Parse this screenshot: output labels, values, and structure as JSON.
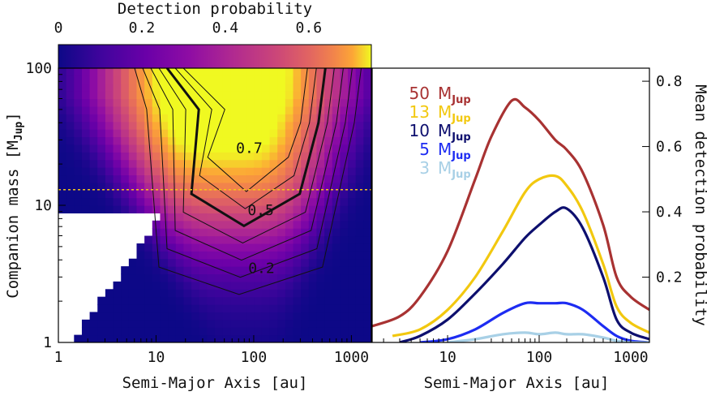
{
  "chart_data": [
    {
      "type": "heatmap",
      "colorbar": {
        "label": "Detection probability",
        "ticks": [
          "0",
          "0.2",
          "0.4",
          "0.6"
        ],
        "range": [
          0,
          0.75
        ],
        "colormap": "plasma"
      },
      "xlabel": "Semi-Major Axis [au]",
      "xticks": [
        "1",
        "10",
        "100",
        "1000"
      ],
      "xscale": "log",
      "xlim": [
        1,
        1600
      ],
      "ylabel_main": "Companion mass [M",
      "ylabel_sub": "Jup",
      "ylabel_end": "]",
      "yticks": [
        "1",
        "10",
        "100"
      ],
      "yscale": "log",
      "ylim": [
        1,
        100
      ],
      "dashed_line_mass": 13,
      "dashed_line_color": "#f5c518",
      "contour_levels": [
        0.1,
        0.2,
        0.3,
        0.4,
        0.5,
        0.6,
        0.7
      ],
      "bold_contour_level": 0.5,
      "contour_labels": [
        "0.7",
        "0.5",
        "0.2"
      ]
    },
    {
      "type": "line",
      "xlabel": "Semi-Major Axis [au]",
      "xticks": [
        "10",
        "100",
        "1000"
      ],
      "xscale": "log",
      "xlim": [
        1.5,
        1600
      ],
      "ylabel": "Mean detection probability",
      "yticks": [
        "0.2",
        "0.4",
        "0.6",
        "0.8"
      ],
      "ylim": [
        0,
        0.84
      ],
      "legend_placement": "top-left",
      "series": [
        {
          "label": "50",
          "unit": "M",
          "unit_sub": "Jup",
          "color": "#a83232",
          "x": [
            1.5,
            3,
            5,
            10,
            20,
            30,
            50,
            70,
            100,
            150,
            200,
            300,
            500,
            700,
            1000,
            1600
          ],
          "y": [
            0.05,
            0.08,
            0.14,
            0.28,
            0.5,
            0.63,
            0.74,
            0.72,
            0.68,
            0.62,
            0.59,
            0.52,
            0.36,
            0.2,
            0.14,
            0.1
          ]
        },
        {
          "label": "13",
          "unit": "M",
          "unit_sub": "Jup",
          "color": "#f2c80f",
          "x": [
            2.5,
            5,
            10,
            20,
            40,
            70,
            100,
            150,
            200,
            300,
            500,
            700,
            1000,
            1600
          ],
          "y": [
            0.02,
            0.04,
            0.1,
            0.2,
            0.34,
            0.46,
            0.5,
            0.51,
            0.48,
            0.4,
            0.24,
            0.11,
            0.06,
            0.03
          ]
        },
        {
          "label": "10",
          "unit": "M",
          "unit_sub": "Jup",
          "color": "#0d0f6e",
          "x": [
            3,
            5,
            10,
            20,
            40,
            70,
            100,
            150,
            200,
            300,
            500,
            700,
            1000,
            1600
          ],
          "y": [
            0.0,
            0.02,
            0.07,
            0.15,
            0.24,
            0.32,
            0.36,
            0.4,
            0.41,
            0.35,
            0.2,
            0.07,
            0.03,
            0.01
          ]
        },
        {
          "label": "5",
          "unit": "M",
          "unit_sub": "Jup",
          "color": "#1d2cf2",
          "x": [
            5,
            10,
            20,
            40,
            70,
            100,
            150,
            200,
            300,
            500,
            700,
            1000,
            1600
          ],
          "y": [
            0.0,
            0.01,
            0.04,
            0.09,
            0.12,
            0.12,
            0.12,
            0.12,
            0.1,
            0.05,
            0.02,
            0.005,
            0.0
          ]
        },
        {
          "label": "3",
          "unit": "M",
          "unit_sub": "Jup",
          "color": "#a8d0e6",
          "x": [
            10,
            20,
            40,
            70,
            100,
            150,
            200,
            300,
            500,
            700,
            1000,
            1600
          ],
          "y": [
            0.0,
            0.01,
            0.025,
            0.03,
            0.025,
            0.03,
            0.025,
            0.025,
            0.015,
            0.005,
            0.0,
            0.0
          ]
        }
      ]
    }
  ]
}
